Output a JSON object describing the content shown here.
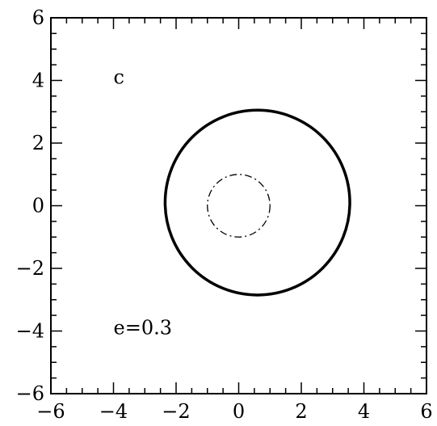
{
  "chart_data": {
    "type": "line",
    "title": "",
    "xlabel": "",
    "ylabel": "",
    "xlim": [
      -6,
      6
    ],
    "ylim": [
      -6,
      6
    ],
    "grid": false,
    "x_ticks": [
      -6,
      -4,
      -2,
      0,
      2,
      4,
      6
    ],
    "y_ticks": [
      -6,
      -4,
      -2,
      0,
      2,
      4,
      6
    ],
    "x_tick_labels": [
      "−6",
      "−4",
      "−2",
      "0",
      "2",
      "4",
      "6"
    ],
    "y_tick_labels": [
      "−6",
      "−4",
      "−2",
      "0",
      "2",
      "4",
      "6"
    ],
    "minor_tick_step": 0.5,
    "annotations": [
      {
        "text": "c",
        "x": -4.0,
        "y": 4.1
      },
      {
        "text": "e=0.3",
        "x": -4.0,
        "y": -3.9
      }
    ],
    "series": [
      {
        "style": "solid",
        "color": "#000000",
        "shape": "circle",
        "center": [
          0.6,
          0.1
        ],
        "radius": 2.95,
        "thick": true
      },
      {
        "style": "dash-dot",
        "color": "#000000",
        "shape": "circle",
        "center": [
          0.0,
          0.0
        ],
        "radius": 1.0,
        "thick": false
      }
    ]
  }
}
